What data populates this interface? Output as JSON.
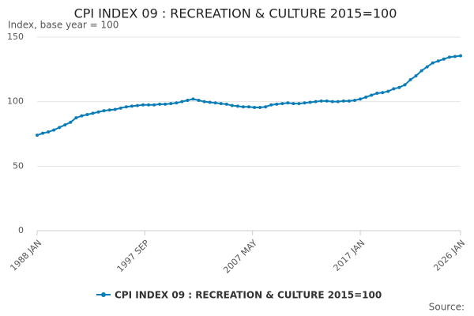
{
  "chart_data": {
    "type": "line",
    "title": "CPI INDEX 09 : RECREATION & CULTURE 2015=100",
    "y_label": "Index, base year = 100",
    "source": "Source:",
    "x": [
      "1988 JAN",
      "1988 JUL",
      "1989 JAN",
      "1989 JUL",
      "1990 JAN",
      "1990 JUL",
      "1991 JAN",
      "1991 JUL",
      "1992 JAN",
      "1992 JUL",
      "1993 JAN",
      "1993 JUL",
      "1994 JAN",
      "1994 JUL",
      "1995 JAN",
      "1995 JUL",
      "1996 JAN",
      "1996 JUL",
      "1997 JAN",
      "1997 JUL",
      "1998 JAN",
      "1998 JUL",
      "1999 JAN",
      "1999 JUL",
      "2000 JAN",
      "2000 JUL",
      "2001 JAN",
      "2001 JUL",
      "2002 JAN",
      "2002 JUL",
      "2003 JAN",
      "2003 JUL",
      "2004 JAN",
      "2004 JUL",
      "2005 JAN",
      "2005 JUL",
      "2006 JAN",
      "2006 JUL",
      "2007 JAN",
      "2007 JUL",
      "2008 JAN",
      "2008 JUL",
      "2009 JAN",
      "2009 JUL",
      "2010 JAN",
      "2010 JUL",
      "2011 JAN",
      "2011 JUL",
      "2012 JAN",
      "2012 JUL",
      "2013 JAN",
      "2013 JUL",
      "2014 JAN",
      "2014 JUL",
      "2015 JAN",
      "2015 JUL",
      "2016 JAN",
      "2016 JUL",
      "2017 JAN",
      "2017 JUL",
      "2018 JAN",
      "2018 JUL",
      "2019 JAN",
      "2019 JUL",
      "2020 JAN",
      "2020 JUL",
      "2021 JAN",
      "2021 JUL",
      "2022 JAN",
      "2022 JUL",
      "2023 JAN",
      "2023 JUL",
      "2024 JAN",
      "2024 JUL",
      "2025 JAN",
      "2025 JUL",
      "2026 JAN"
    ],
    "series": [
      {
        "name": "CPI INDEX 09 : RECREATION & CULTURE 2015=100",
        "color": "#0a7cb8",
        "values": [
          74,
          75.5,
          76.5,
          78,
          80,
          82,
          84,
          87.5,
          89,
          90,
          91,
          92,
          93,
          93.5,
          94,
          95,
          96,
          96.5,
          97,
          97.5,
          97.5,
          97.5,
          98,
          98,
          98.5,
          99,
          100,
          101,
          102,
          101,
          100,
          99.5,
          99,
          98.5,
          98,
          97,
          96.5,
          96,
          96,
          95.5,
          95.5,
          96,
          97.5,
          98,
          98.5,
          99,
          98.5,
          98.5,
          99,
          99.5,
          100,
          100.5,
          100.5,
          100,
          100,
          100.5,
          100.5,
          101,
          102,
          103.5,
          105,
          106.5,
          107,
          108,
          110,
          111,
          113,
          117,
          120,
          124,
          127,
          130,
          131.5,
          133,
          134.5,
          135,
          135.5
        ]
      }
    ],
    "xticks": [
      "1988 JAN",
      "1997 SEP",
      "2007 MAY",
      "2017 JAN",
      "2026 JAN"
    ],
    "ylim": [
      0,
      150
    ],
    "yticks": [
      0,
      50,
      100,
      150
    ],
    "grid": true
  }
}
